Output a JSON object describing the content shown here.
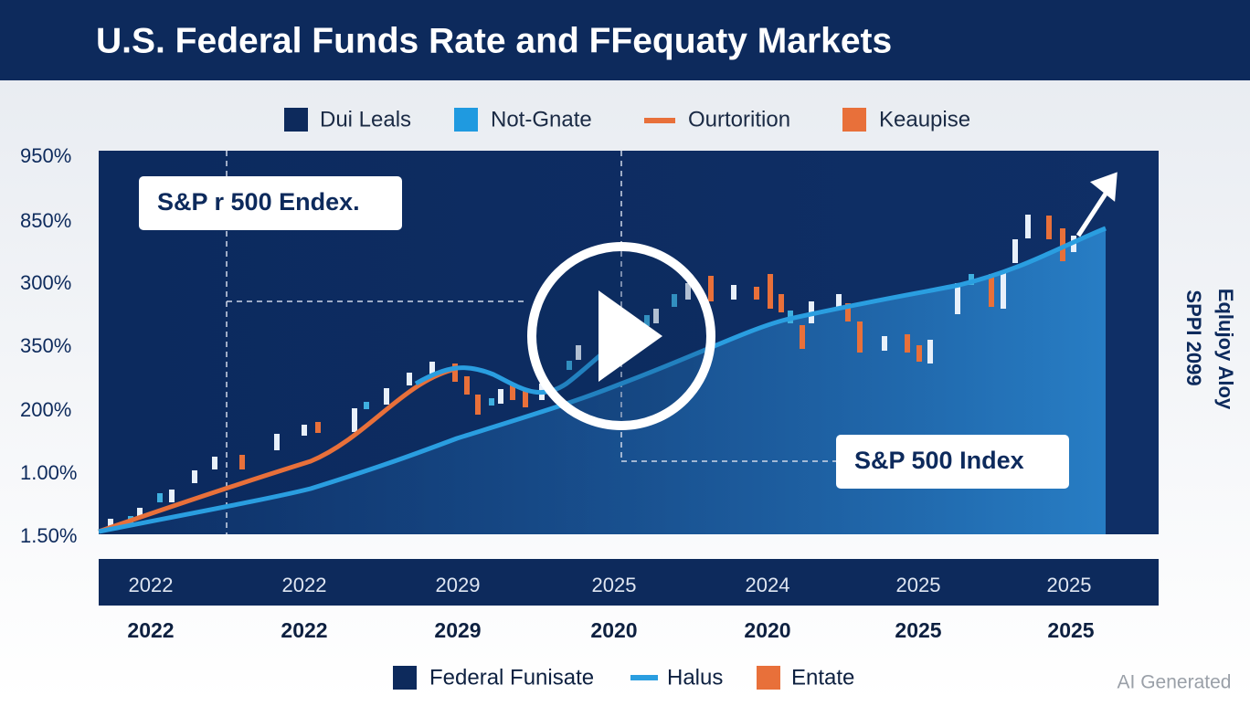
{
  "header": {
    "title": "U.S. Federal Funds Rate and FFequaty Markets"
  },
  "legend_top": [
    "Dui Leals",
    "Not-Gnate",
    "Ourtorition",
    "Keaupise"
  ],
  "y_labels": [
    "950%",
    "850%",
    "300%",
    "350%",
    "200%",
    "1.00%",
    "1.50%"
  ],
  "annotations": [
    "S&P r 500 Endex.",
    "S&P 500 Index"
  ],
  "x_labels_band": [
    "2022",
    "2022",
    "2029",
    "2025",
    "2024",
    "2025",
    "2025"
  ],
  "x_labels_below": [
    "2022",
    "2022",
    "2029",
    "2020",
    "2020",
    "2025",
    "2025"
  ],
  "legend_bottom": [
    "Federal Funisate",
    "Halus",
    "Entate"
  ],
  "side_labels": [
    "SPPI 2099",
    "Eqlujoy Aloy"
  ],
  "watermark": "AI Generated"
}
